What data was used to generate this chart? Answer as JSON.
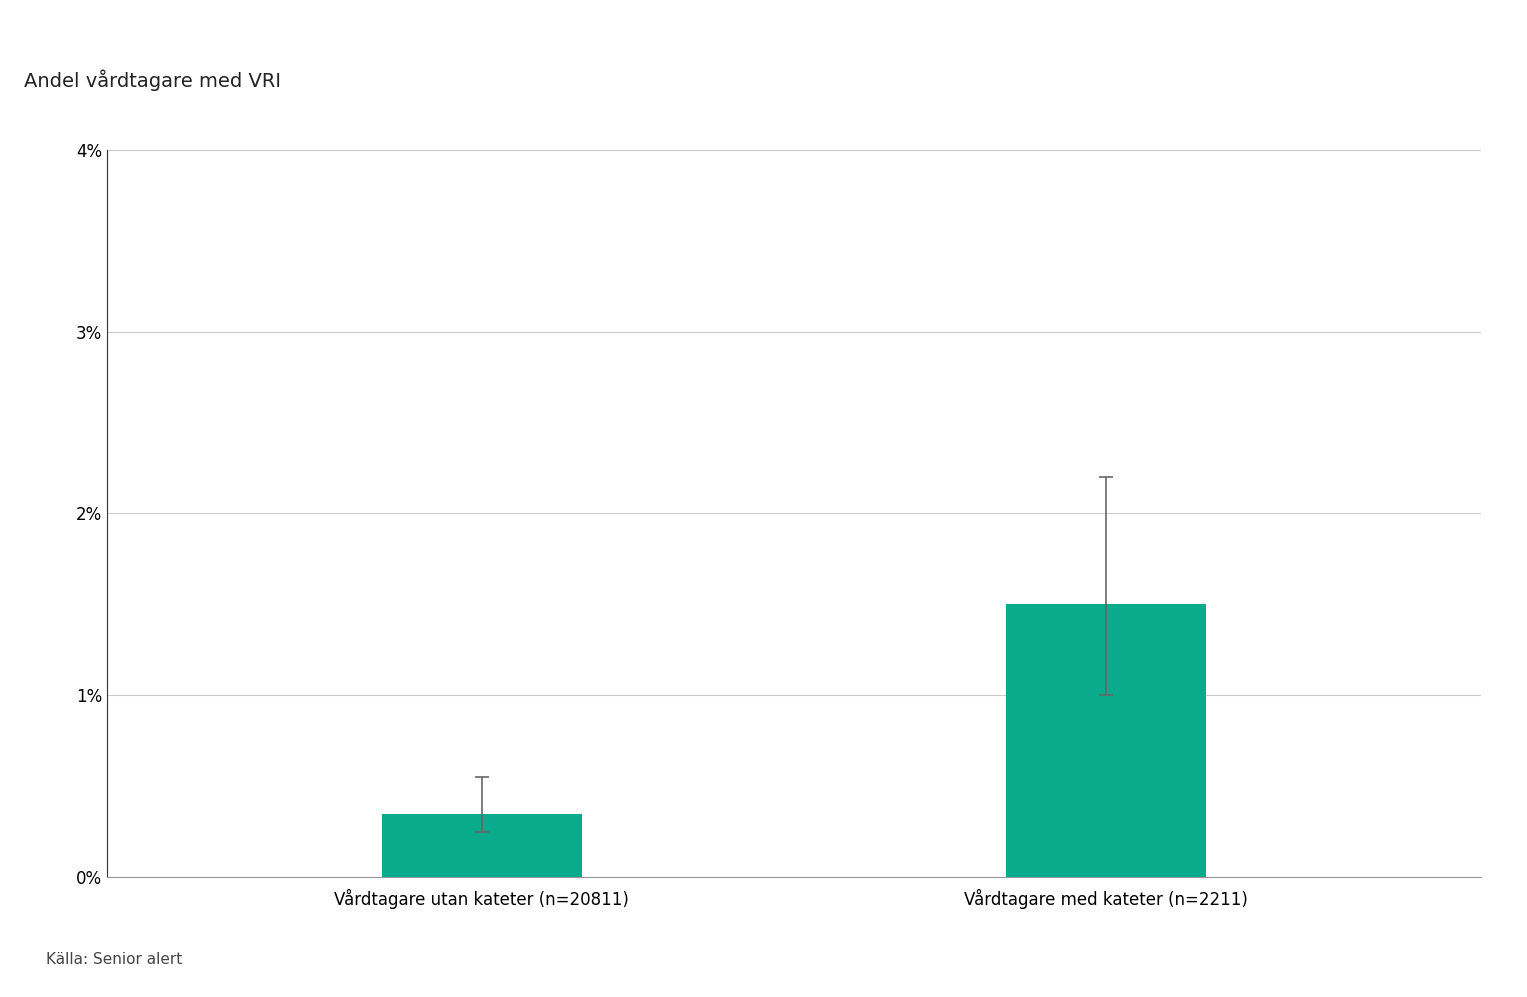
{
  "title": "Andel vårdtagare med VRI",
  "categories": [
    "Vårdtagare utan kateter (n=20811)",
    "Vårdtagare med kateter (n=2211)"
  ],
  "values": [
    0.0035,
    0.015
  ],
  "errors_upper": [
    0.002,
    0.007
  ],
  "errors_lower": [
    0.001,
    0.005
  ],
  "bar_color": "#09ab8c",
  "bar_width": 0.32,
  "ylim": [
    0,
    0.04
  ],
  "yticks": [
    0.0,
    0.01,
    0.02,
    0.03,
    0.04
  ],
  "ytick_labels": [
    "0%",
    "1%",
    "2%",
    "3%",
    "4%"
  ],
  "background_color": "#ffffff",
  "grid_color": "#cccccc",
  "title_fontsize": 14,
  "tick_fontsize": 12,
  "label_fontsize": 12,
  "source_text": "Källa: Senior alert",
  "source_fontsize": 11,
  "errorbar_color": "#666666",
  "spine_color": "#999999"
}
